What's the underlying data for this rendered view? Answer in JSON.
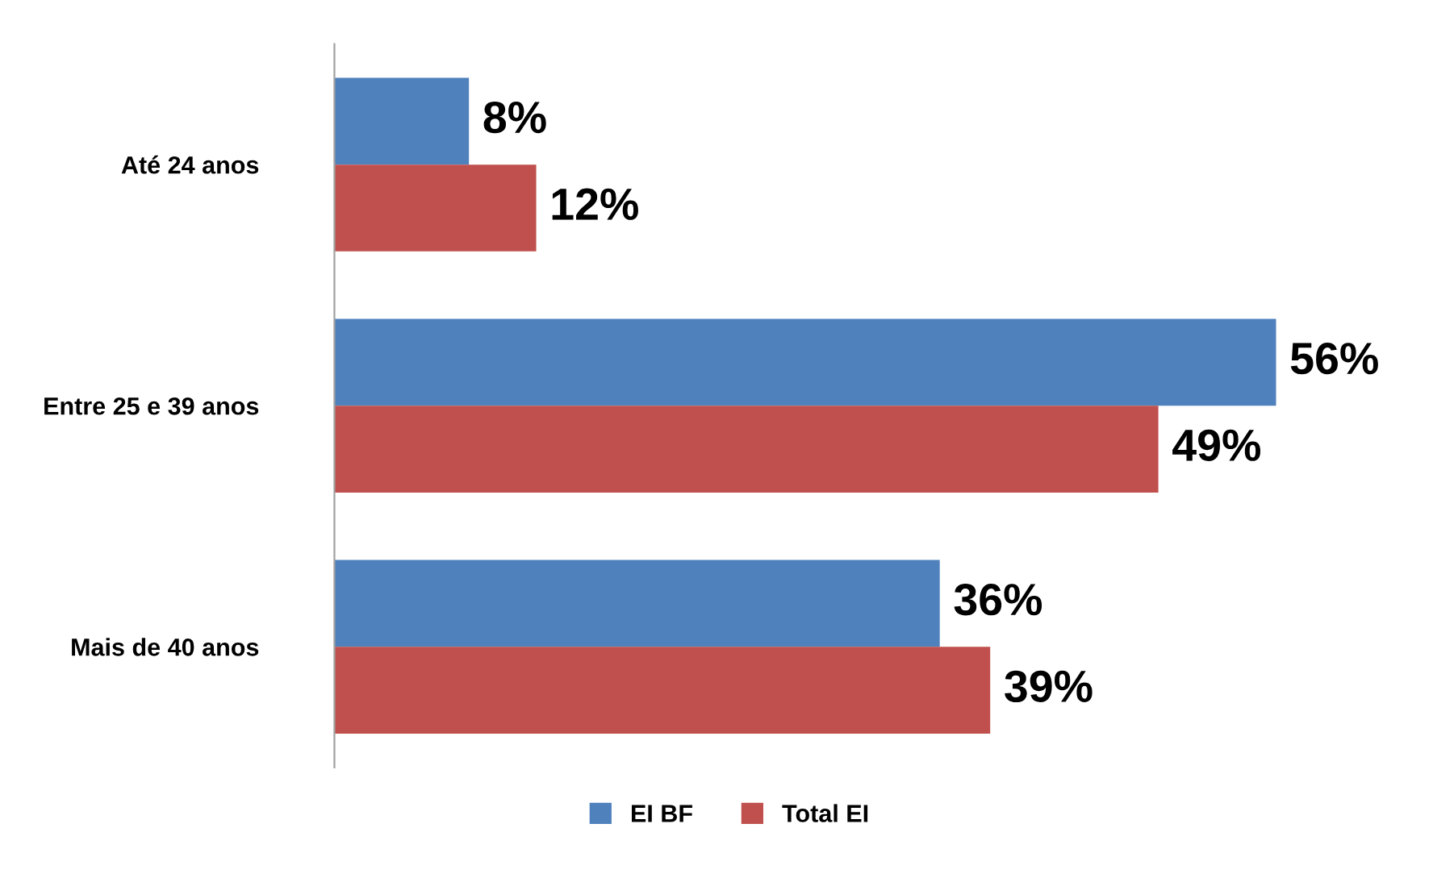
{
  "chart_data": {
    "type": "bar",
    "orientation": "horizontal",
    "categories": [
      "Até 24 anos",
      "Entre 25 e 39 anos",
      "Mais de 40 anos"
    ],
    "series": [
      {
        "name": "EI BF",
        "color": "#4f81bd",
        "values": [
          8,
          56,
          36
        ],
        "value_labels": [
          "8%",
          "56%",
          "36%"
        ]
      },
      {
        "name": "Total EI",
        "color": "#c0504d",
        "values": [
          12,
          49,
          39
        ],
        "value_labels": [
          "12%",
          "49%",
          "39%"
        ]
      }
    ],
    "tick_labels": "y",
    "grid": false,
    "legend": "bottom"
  }
}
